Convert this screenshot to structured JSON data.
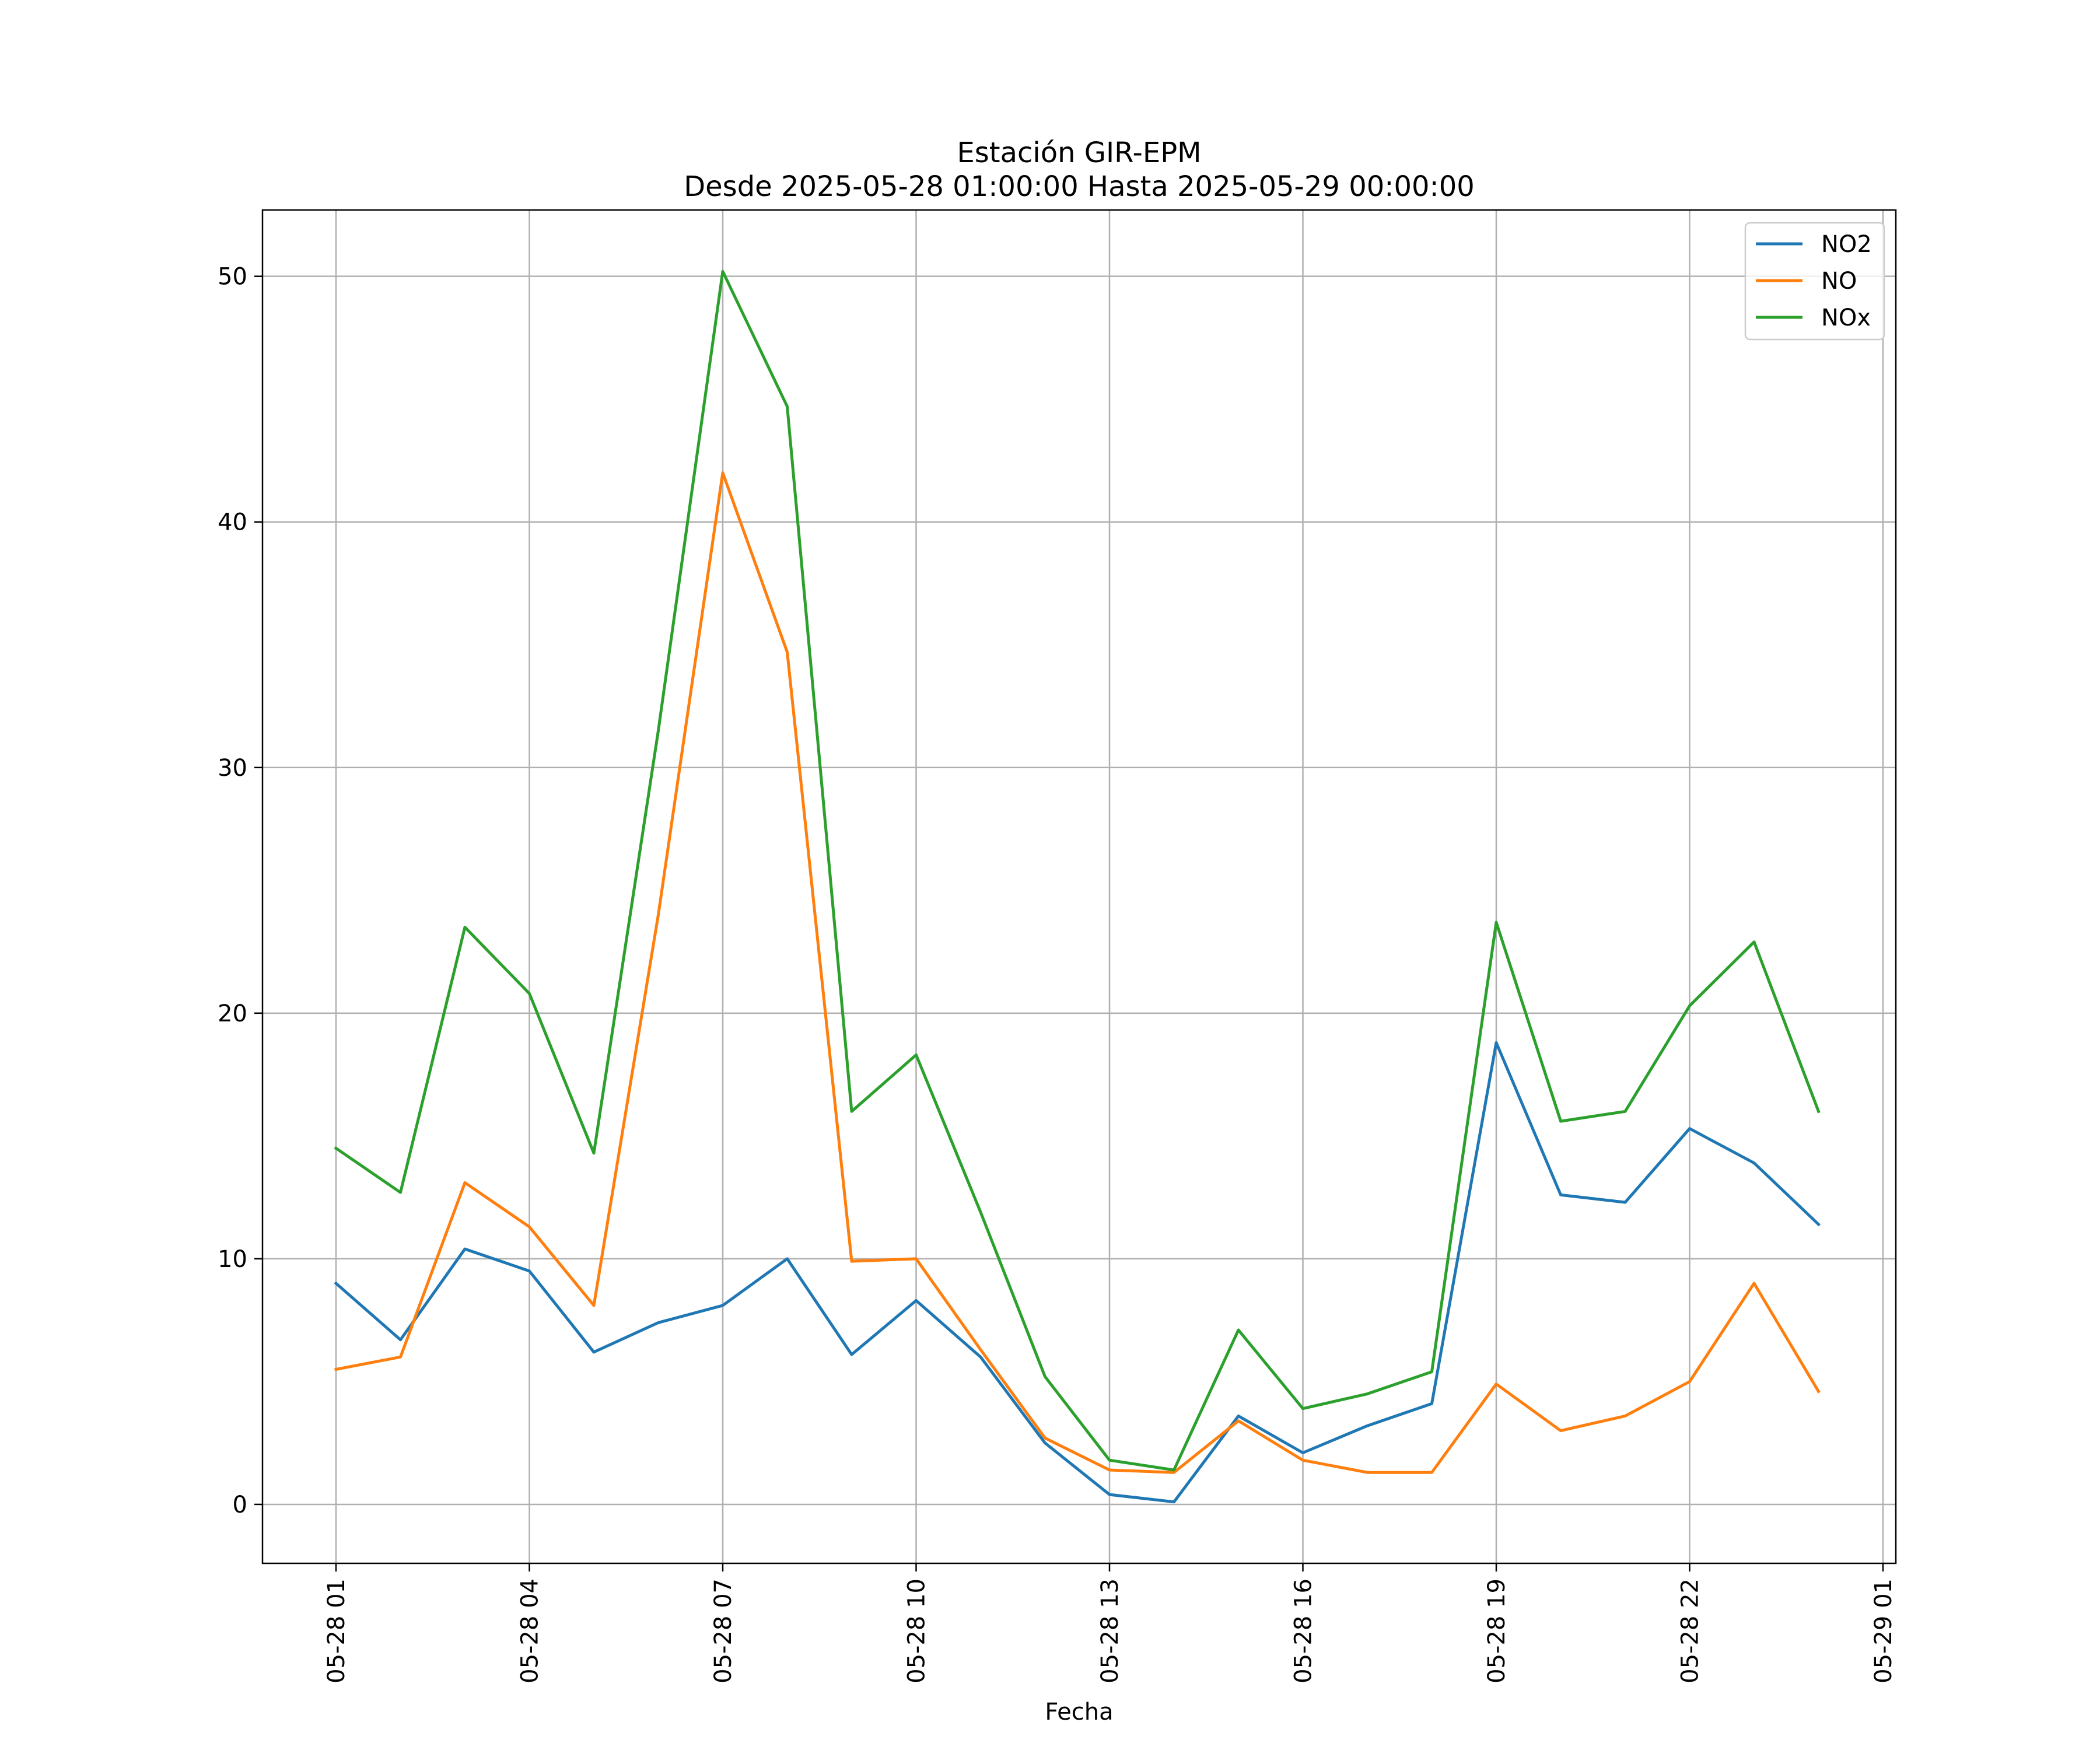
{
  "chart_data": {
    "type": "line",
    "title": "Estación GIR-EPM",
    "subtitle": "Desde 2025-05-28 01:00:00 Hasta 2025-05-29 00:00:00",
    "xlabel": "Fecha",
    "ylabel": "",
    "x": [
      "05-28 01",
      "05-28 02",
      "05-28 03",
      "05-28 04",
      "05-28 05",
      "05-28 06",
      "05-28 07",
      "05-28 08",
      "05-28 09",
      "05-28 10",
      "05-28 11",
      "05-28 12",
      "05-28 13",
      "05-28 14",
      "05-28 15",
      "05-28 16",
      "05-28 17",
      "05-28 18",
      "05-28 19",
      "05-28 20",
      "05-28 21",
      "05-28 22",
      "05-28 23",
      "05-29 00"
    ],
    "x_ticks": [
      "05-28 01",
      "05-28 04",
      "05-28 07",
      "05-28 10",
      "05-28 13",
      "05-28 16",
      "05-28 19",
      "05-28 22",
      "05-29 01"
    ],
    "x_range": [
      "05-28 01",
      "05-29 01"
    ],
    "y_ticks": [
      0,
      10,
      20,
      30,
      40,
      50
    ],
    "ylim": [
      -2.4,
      52.7
    ],
    "grid": true,
    "legend_position": "top-right",
    "series": [
      {
        "name": "NO2",
        "color": "#1f77b4",
        "values": [
          9.0,
          6.7,
          10.4,
          9.5,
          6.2,
          7.4,
          8.1,
          10.0,
          6.1,
          8.3,
          6.0,
          2.5,
          0.4,
          0.1,
          3.6,
          2.1,
          3.2,
          4.1,
          18.8,
          12.6,
          12.3,
          15.3,
          13.9,
          11.4
        ]
      },
      {
        "name": "NO",
        "color": "#ff7f0e",
        "values": [
          5.5,
          6.0,
          13.1,
          11.3,
          8.1,
          24.0,
          42.0,
          34.7,
          9.9,
          10.0,
          6.3,
          2.7,
          1.4,
          1.3,
          3.4,
          1.8,
          1.3,
          1.3,
          4.9,
          3.0,
          3.6,
          5.0,
          9.0,
          4.6
        ]
      },
      {
        "name": "NOx",
        "color": "#2ca02c",
        "values": [
          14.5,
          12.7,
          23.5,
          20.8,
          14.3,
          31.5,
          50.2,
          44.7,
          16.0,
          18.3,
          11.9,
          5.2,
          1.8,
          1.4,
          7.1,
          3.9,
          4.5,
          5.4,
          23.7,
          15.6,
          16.0,
          20.3,
          22.9,
          16.0
        ]
      }
    ]
  }
}
